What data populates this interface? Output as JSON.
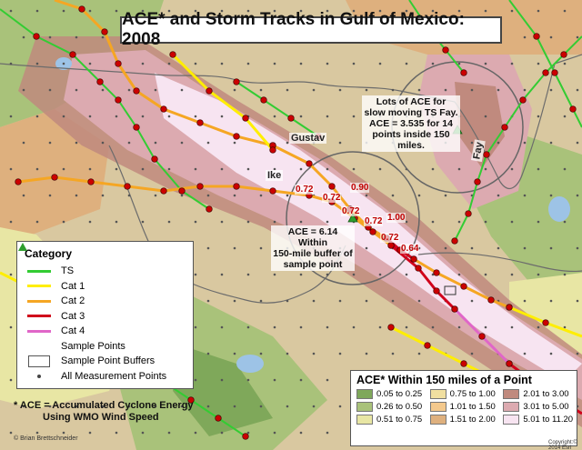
{
  "title": "ACE* and Storm Tracks in Gulf of Mexico: 2008",
  "storms": [
    {
      "name": "Gustav"
    },
    {
      "name": "Ike"
    },
    {
      "name": "Fay"
    }
  ],
  "point_values": [
    "0.72",
    "0.72",
    "0.90",
    "0.72",
    "0.72",
    "1.00",
    "0.72",
    "0.64"
  ],
  "annotations": {
    "fay_note": [
      "Lots of ACE for",
      "slow moving TS Fay.",
      "ACE = 3.535 for 14",
      "points inside 150 miles."
    ],
    "sample_note": [
      "ACE = 6.14 Within",
      "150-mile buffer of",
      "sample point"
    ]
  },
  "category_legend": {
    "heading": "Category",
    "items": [
      {
        "label": "TS",
        "color": "#33cc33",
        "symbol": "line"
      },
      {
        "label": "Cat 1",
        "color": "#ffee00",
        "symbol": "line"
      },
      {
        "label": "Cat 2",
        "color": "#f5a623",
        "symbol": "line"
      },
      {
        "label": "Cat 3",
        "color": "#d0021b",
        "symbol": "line"
      },
      {
        "label": "Cat 4",
        "color": "#e066c8",
        "symbol": "line"
      },
      {
        "label": "Sample Points",
        "color": "#2e9e2e",
        "symbol": "triangle"
      },
      {
        "label": "Sample Point Buffers",
        "color": "#555555",
        "symbol": "box"
      },
      {
        "label": "All Measurement Points",
        "color": "#444444",
        "symbol": "dot"
      }
    ]
  },
  "ace_legend": {
    "heading": "ACE* Within 150 miles of a Point",
    "classes": [
      {
        "label": "0.05 to 0.25",
        "color": "#7fa85a"
      },
      {
        "label": "0.75 to 1.00",
        "color": "#f0dfa0"
      },
      {
        "label": "2.01 to 3.00",
        "color": "#c08a7e"
      },
      {
        "label": "0.26 to 0.50",
        "color": "#a9c27a"
      },
      {
        "label": "1.01 to 1.50",
        "color": "#f4c98d"
      },
      {
        "label": "3.01 to 5.00",
        "color": "#dcaab0"
      },
      {
        "label": "0.51 to 0.75",
        "color": "#e8e6a4"
      },
      {
        "label": "1.51 to 2.00",
        "color": "#deb07e"
      },
      {
        "label": "5.01 to 11.20",
        "color": "#f7e4f1"
      }
    ]
  },
  "footnote": [
    "* ACE = Accumulated Cyclone Energy",
    "Using WMO Wind Speed"
  ],
  "credit": "© Brian Brettschneider",
  "credit2": "Copyright:© 2014 Esri",
  "colors": {
    "water": "#9dc3e6",
    "track_ts": "#33cc33",
    "track_cat1": "#ffee00",
    "track_cat2": "#f5a623",
    "track_cat3": "#d0021b",
    "track_cat4": "#e066c8",
    "track_point": "#cc0000"
  }
}
